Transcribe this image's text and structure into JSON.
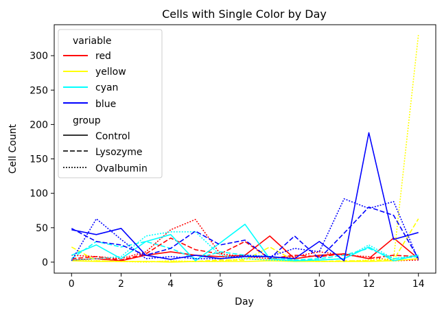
{
  "chart_data": {
    "type": "line",
    "title": "Cells with Single Color by Day",
    "xlabel": "Day",
    "ylabel": "Cell Count",
    "xlim": [
      -0.7,
      14.7
    ],
    "ylim": [
      -16,
      345
    ],
    "xticks": [
      0,
      2,
      4,
      6,
      8,
      10,
      12,
      14
    ],
    "yticks": [
      0,
      50,
      100,
      150,
      200,
      250,
      300
    ],
    "grid": false,
    "legend_position": "top-left",
    "legend": {
      "variable_title": "variable",
      "group_title": "group",
      "variables": [
        {
          "name": "red",
          "color": "#ff0000"
        },
        {
          "name": "yellow",
          "color": "#ffff00"
        },
        {
          "name": "cyan",
          "color": "#00ffff"
        },
        {
          "name": "blue",
          "color": "#0000ff"
        }
      ],
      "groups": [
        {
          "name": "Control",
          "dash": "solid"
        },
        {
          "name": "Lysozyme",
          "dash": "dashed"
        },
        {
          "name": "Ovalbumin",
          "dash": "dotted"
        }
      ]
    },
    "x": [
      0,
      1,
      2,
      3,
      4,
      5,
      6,
      7,
      8,
      9,
      10,
      11,
      12,
      13,
      14
    ],
    "series": [
      {
        "variable": "red",
        "group": "Control",
        "values": [
          3,
          5,
          2,
          10,
          15,
          10,
          8,
          10,
          38,
          5,
          10,
          12,
          5,
          35,
          5
        ]
      },
      {
        "variable": "red",
        "group": "Lysozyme",
        "values": [
          5,
          8,
          3,
          12,
          35,
          18,
          12,
          30,
          5,
          10,
          8,
          12,
          5,
          10,
          8
        ]
      },
      {
        "variable": "red",
        "group": "Ovalbumin",
        "values": [
          10,
          8,
          5,
          15,
          47,
          62,
          12,
          8,
          5,
          8,
          15,
          10,
          8,
          2,
          3
        ]
      },
      {
        "variable": "yellow",
        "group": "Control",
        "values": [
          2,
          1,
          1,
          1,
          0,
          1,
          1,
          1,
          2,
          1,
          1,
          1,
          1,
          2,
          5
        ]
      },
      {
        "variable": "yellow",
        "group": "Lysozyme",
        "values": [
          22,
          2,
          1,
          1,
          1,
          1,
          3,
          3,
          22,
          2,
          1,
          2,
          2,
          3,
          63
        ]
      },
      {
        "variable": "yellow",
        "group": "Ovalbumin",
        "values": [
          3,
          2,
          1,
          0,
          2,
          1,
          1,
          5,
          3,
          2,
          1,
          1,
          3,
          5,
          330
        ]
      },
      {
        "variable": "cyan",
        "group": "Control",
        "values": [
          10,
          25,
          5,
          30,
          40,
          2,
          28,
          55,
          5,
          2,
          3,
          5,
          22,
          2,
          10
        ]
      },
      {
        "variable": "cyan",
        "group": "Lysozyme",
        "values": [
          5,
          30,
          22,
          30,
          20,
          5,
          15,
          10,
          8,
          3,
          5,
          10,
          20,
          5,
          8
        ]
      },
      {
        "variable": "cyan",
        "group": "Ovalbumin",
        "values": [
          3,
          5,
          8,
          38,
          44,
          44,
          10,
          5,
          3,
          2,
          3,
          5,
          25,
          5,
          10
        ]
      },
      {
        "variable": "blue",
        "group": "Control",
        "values": [
          47,
          40,
          49,
          10,
          4,
          10,
          5,
          8,
          8,
          5,
          30,
          2,
          188,
          33,
          43
        ]
      },
      {
        "variable": "blue",
        "group": "Lysozyme",
        "values": [
          49,
          30,
          25,
          10,
          20,
          45,
          25,
          32,
          5,
          38,
          5,
          42,
          80,
          68,
          5
        ]
      },
      {
        "variable": "blue",
        "group": "Ovalbumin",
        "values": [
          2,
          63,
          33,
          5,
          8,
          5,
          5,
          10,
          8,
          20,
          15,
          92,
          78,
          88,
          3
        ]
      }
    ]
  }
}
